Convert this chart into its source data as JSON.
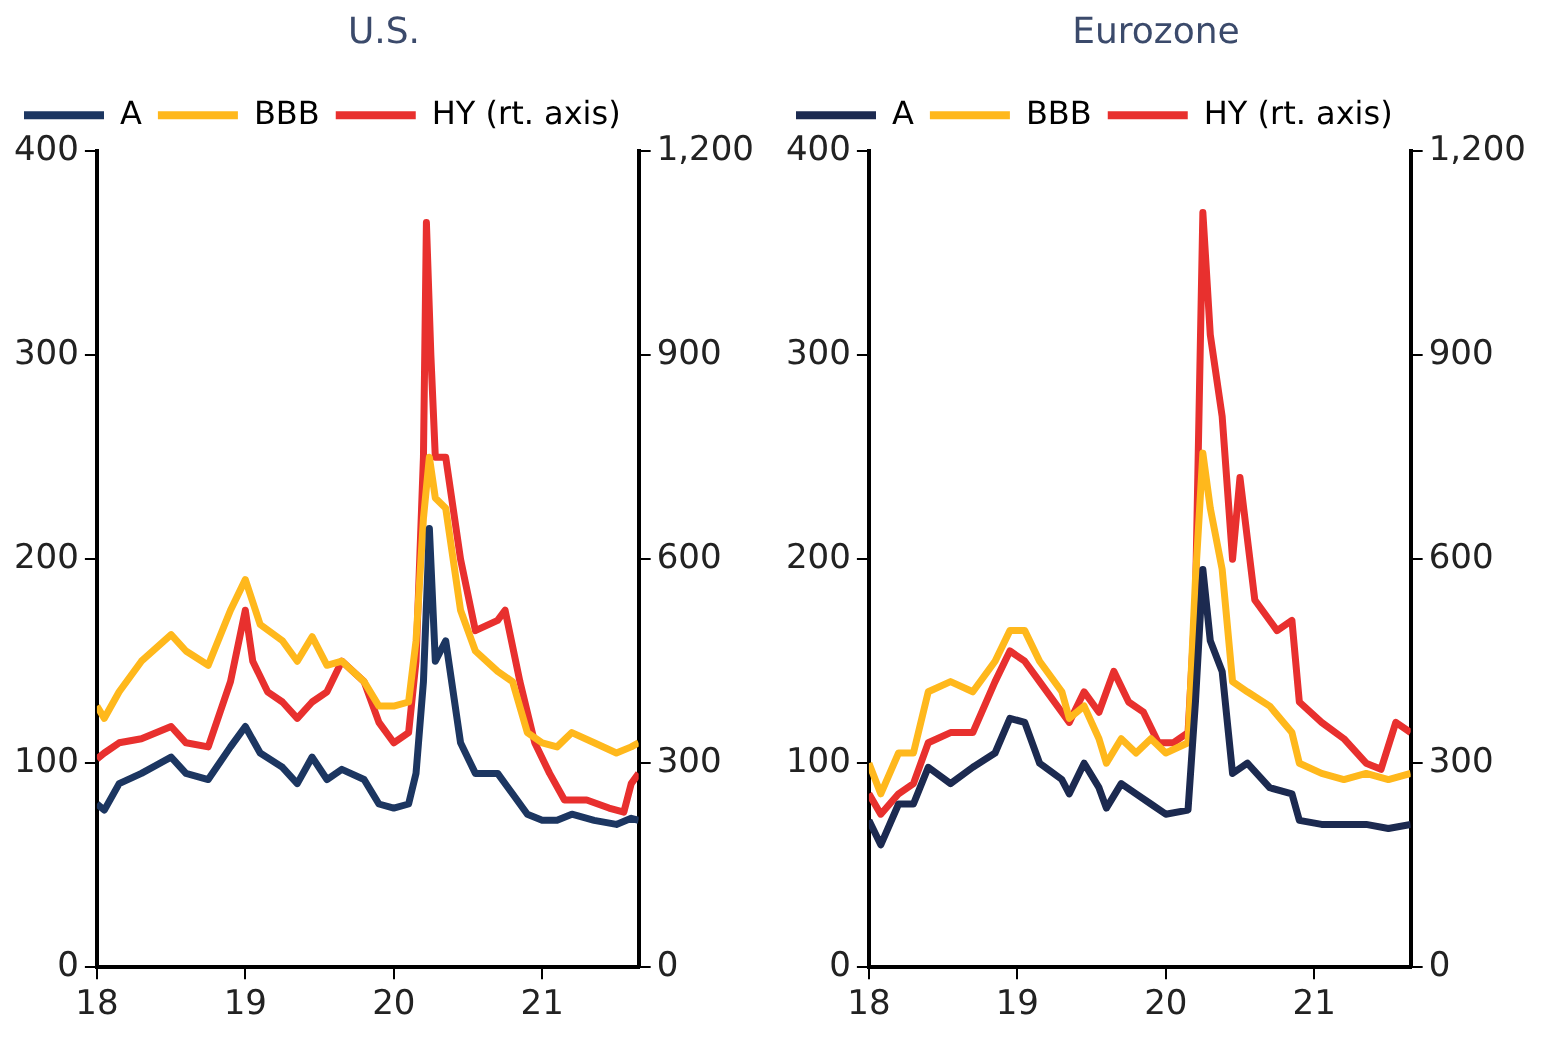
{
  "chart_data": [
    {
      "type": "line",
      "title": "U.S.",
      "legend": "top left",
      "grid": false,
      "xlim": [
        18,
        21.65
      ],
      "xticks": [
        18,
        19,
        20,
        21
      ],
      "ylim": [
        0,
        400
      ],
      "yticks": [
        0,
        100,
        200,
        300,
        400
      ],
      "y2lim": [
        0,
        1200
      ],
      "y2ticks": [
        0,
        300,
        600,
        900,
        {
          "value": 1200,
          "label": "1,200"
        }
      ],
      "series": [
        {
          "name": "A",
          "color": "#1c3661",
          "x": [
            18.0,
            18.05,
            18.15,
            18.3,
            18.5,
            18.6,
            18.75,
            18.9,
            19.0,
            19.1,
            19.25,
            19.35,
            19.45,
            19.55,
            19.65,
            19.8,
            19.9,
            20.0,
            20.1,
            20.15,
            20.2,
            20.24,
            20.28,
            20.35,
            20.45,
            20.55,
            20.7,
            20.8,
            20.9,
            21.0,
            21.1,
            21.2,
            21.35,
            21.5,
            21.6,
            21.65
          ],
          "values": [
            80,
            77,
            90,
            95,
            103,
            95,
            92,
            108,
            118,
            105,
            98,
            90,
            103,
            92,
            97,
            92,
            80,
            78,
            80,
            95,
            140,
            215,
            150,
            160,
            110,
            95,
            95,
            85,
            75,
            72,
            72,
            75,
            72,
            70,
            73,
            72
          ]
        },
        {
          "name": "BBB",
          "color": "#ffb81c",
          "x": [
            18.0,
            18.05,
            18.15,
            18.3,
            18.5,
            18.6,
            18.75,
            18.9,
            19.0,
            19.1,
            19.25,
            19.35,
            19.45,
            19.55,
            19.65,
            19.8,
            19.9,
            20.0,
            20.1,
            20.15,
            20.2,
            20.24,
            20.28,
            20.35,
            20.45,
            20.55,
            20.7,
            20.8,
            20.9,
            21.0,
            21.1,
            21.2,
            21.35,
            21.5,
            21.6,
            21.65
          ],
          "values": [
            128,
            122,
            135,
            150,
            163,
            155,
            148,
            175,
            190,
            168,
            160,
            150,
            162,
            148,
            150,
            140,
            128,
            128,
            130,
            160,
            220,
            250,
            230,
            225,
            175,
            155,
            145,
            140,
            115,
            110,
            108,
            115,
            110,
            105,
            108,
            110
          ]
        },
        {
          "name": "HY (rt. axis)",
          "color": "#e8302e",
          "axis": "y2",
          "x": [
            18.0,
            18.05,
            18.15,
            18.3,
            18.5,
            18.6,
            18.75,
            18.9,
            19.0,
            19.05,
            19.15,
            19.25,
            19.35,
            19.45,
            19.55,
            19.65,
            19.8,
            19.9,
            20.0,
            20.1,
            20.15,
            20.2,
            20.22,
            20.25,
            20.28,
            20.35,
            20.45,
            20.55,
            20.7,
            20.75,
            20.85,
            20.95,
            21.05,
            21.15,
            21.3,
            21.45,
            21.55,
            21.6,
            21.65
          ],
          "values": [
            306,
            315,
            330,
            336,
            354,
            330,
            324,
            420,
            525,
            450,
            405,
            390,
            366,
            390,
            405,
            450,
            420,
            360,
            330,
            345,
            450,
            750,
            1095,
            900,
            750,
            750,
            600,
            495,
            510,
            525,
            420,
            330,
            285,
            246,
            246,
            234,
            228,
            270,
            285
          ]
        }
      ]
    },
    {
      "type": "line",
      "title": "Eurozone",
      "legend": "top left",
      "grid": false,
      "xlim": [
        18,
        21.65
      ],
      "xticks": [
        18,
        19,
        20,
        21
      ],
      "ylim": [
        0,
        400
      ],
      "yticks": [
        0,
        100,
        200,
        300,
        400
      ],
      "y2lim": [
        0,
        1200
      ],
      "y2ticks": [
        0,
        300,
        600,
        900,
        {
          "value": 1200,
          "label": "1,200"
        }
      ],
      "series": [
        {
          "name": "A",
          "color": "#1c2a50",
          "x": [
            18.0,
            18.08,
            18.2,
            18.3,
            18.4,
            18.55,
            18.7,
            18.85,
            18.95,
            19.05,
            19.15,
            19.3,
            19.35,
            19.45,
            19.55,
            19.6,
            19.7,
            19.8,
            19.9,
            20.0,
            20.15,
            20.2,
            20.25,
            20.3,
            20.38,
            20.45,
            20.55,
            20.7,
            20.85,
            20.9,
            21.05,
            21.2,
            21.35,
            21.5,
            21.65
          ],
          "values": [
            72,
            60,
            80,
            80,
            98,
            90,
            98,
            105,
            122,
            120,
            100,
            92,
            85,
            100,
            88,
            78,
            90,
            85,
            80,
            75,
            77,
            130,
            195,
            160,
            145,
            95,
            100,
            88,
            85,
            72,
            70,
            70,
            70,
            68,
            70
          ]
        },
        {
          "name": "BBB",
          "color": "#ffb81c",
          "x": [
            18.0,
            18.08,
            18.2,
            18.3,
            18.4,
            18.55,
            18.7,
            18.85,
            18.95,
            19.05,
            19.15,
            19.3,
            19.35,
            19.45,
            19.55,
            19.6,
            19.7,
            19.8,
            19.9,
            20.0,
            20.15,
            20.2,
            20.25,
            20.3,
            20.38,
            20.45,
            20.55,
            20.7,
            20.85,
            20.9,
            21.05,
            21.2,
            21.35,
            21.5,
            21.65
          ],
          "values": [
            100,
            85,
            105,
            105,
            135,
            140,
            135,
            150,
            165,
            165,
            150,
            135,
            122,
            128,
            112,
            100,
            112,
            105,
            112,
            105,
            110,
            190,
            252,
            225,
            195,
            140,
            135,
            128,
            115,
            100,
            95,
            92,
            95,
            92,
            95
          ]
        },
        {
          "name": "HY (rt. axis)",
          "color": "#e8302e",
          "axis": "y2",
          "x": [
            18.0,
            18.08,
            18.2,
            18.3,
            18.4,
            18.55,
            18.7,
            18.85,
            18.95,
            19.05,
            19.15,
            19.3,
            19.35,
            19.45,
            19.55,
            19.65,
            19.75,
            19.85,
            19.95,
            20.05,
            20.15,
            20.2,
            20.25,
            20.3,
            20.38,
            20.45,
            20.5,
            20.6,
            20.75,
            20.85,
            20.9,
            21.05,
            21.2,
            21.35,
            21.45,
            21.55,
            21.65
          ],
          "values": [
            255,
            225,
            255,
            270,
            330,
            345,
            345,
            420,
            465,
            450,
            420,
            375,
            360,
            405,
            375,
            435,
            390,
            375,
            330,
            330,
            345,
            540,
            1110,
            930,
            810,
            600,
            720,
            540,
            495,
            510,
            390,
            360,
            336,
            300,
            291,
            360,
            345
          ]
        }
      ]
    }
  ]
}
